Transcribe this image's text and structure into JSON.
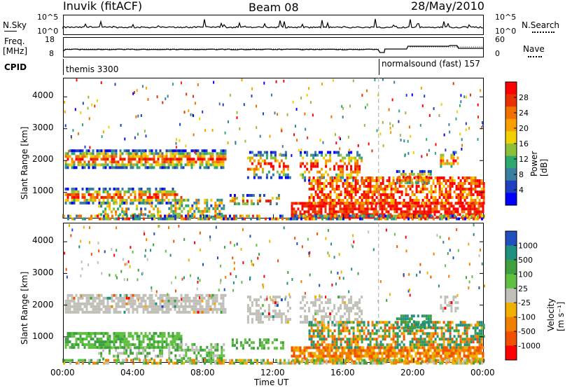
{
  "header": {
    "station": "Inuvik (fitACF)",
    "beam": "Beam 08",
    "date": "28/May/2010"
  },
  "strip_panels": {
    "noise": {
      "left_label": "N.Sky",
      "right_label": "N.Search",
      "right_label_style": "dotted",
      "left_ticks": [
        "10^5",
        "10^0"
      ],
      "right_ticks": [
        "10^5",
        "10^0"
      ]
    },
    "freq": {
      "left_label_top": "Freq.",
      "left_label_bottom": "[MHz]",
      "right_label": "Nave",
      "right_label_style": "dotted",
      "left_ticks": [
        "18",
        "8"
      ],
      "right_ticks": [
        "60",
        "0"
      ]
    },
    "cpid": {
      "label": "CPID",
      "segments": [
        {
          "name": "themis 3300",
          "start_hour": 0,
          "end_hour": 18
        },
        {
          "name": "normalsound (fast) 157",
          "start_hour": 18,
          "end_hour": 24
        }
      ]
    }
  },
  "chart_data": [
    {
      "type": "heatmap",
      "title": "",
      "ylabel": "Slant Range [km]",
      "xlabel": "",
      "ylim": [
        180,
        4600
      ],
      "xlim": [
        0,
        24
      ],
      "yticks": [
        "1000",
        "2000",
        "3000",
        "4000"
      ],
      "colorbar": {
        "label": "Power [dB]",
        "ticks": [
          "4",
          "8",
          "12",
          "16",
          "20",
          "24",
          "28"
        ],
        "range": [
          0,
          30
        ],
        "colors": [
          "#0000ff",
          "#2040c0",
          "#3a7fa0",
          "#2fa870",
          "#8cc03a",
          "#f0d000",
          "#f8a000",
          "#f07000",
          "#e83000",
          "#ff0000"
        ]
      }
    },
    {
      "type": "heatmap",
      "title": "",
      "ylabel": "Slant Range [km]",
      "xlabel": "Time UT",
      "ylim": [
        180,
        4600
      ],
      "xlim": [
        0,
        24
      ],
      "yticks": [
        "1000",
        "2000",
        "3000",
        "4000"
      ],
      "xticks": [
        "00:00",
        "04:00",
        "08:00",
        "12:00",
        "16:00",
        "20:00",
        "00:00"
      ],
      "colorbar": {
        "label": "Velocity [m s⁻¹]",
        "ticks": [
          "1000",
          "500",
          "100",
          "25",
          "-25",
          "-100",
          "-500",
          "-1000"
        ],
        "colors": [
          "#2050c0",
          "#1f8f7f",
          "#3fa040",
          "#60c040",
          "#c0c0b8",
          "#f0b000",
          "#f08000",
          "#f05000",
          "#ff0000"
        ]
      }
    }
  ]
}
